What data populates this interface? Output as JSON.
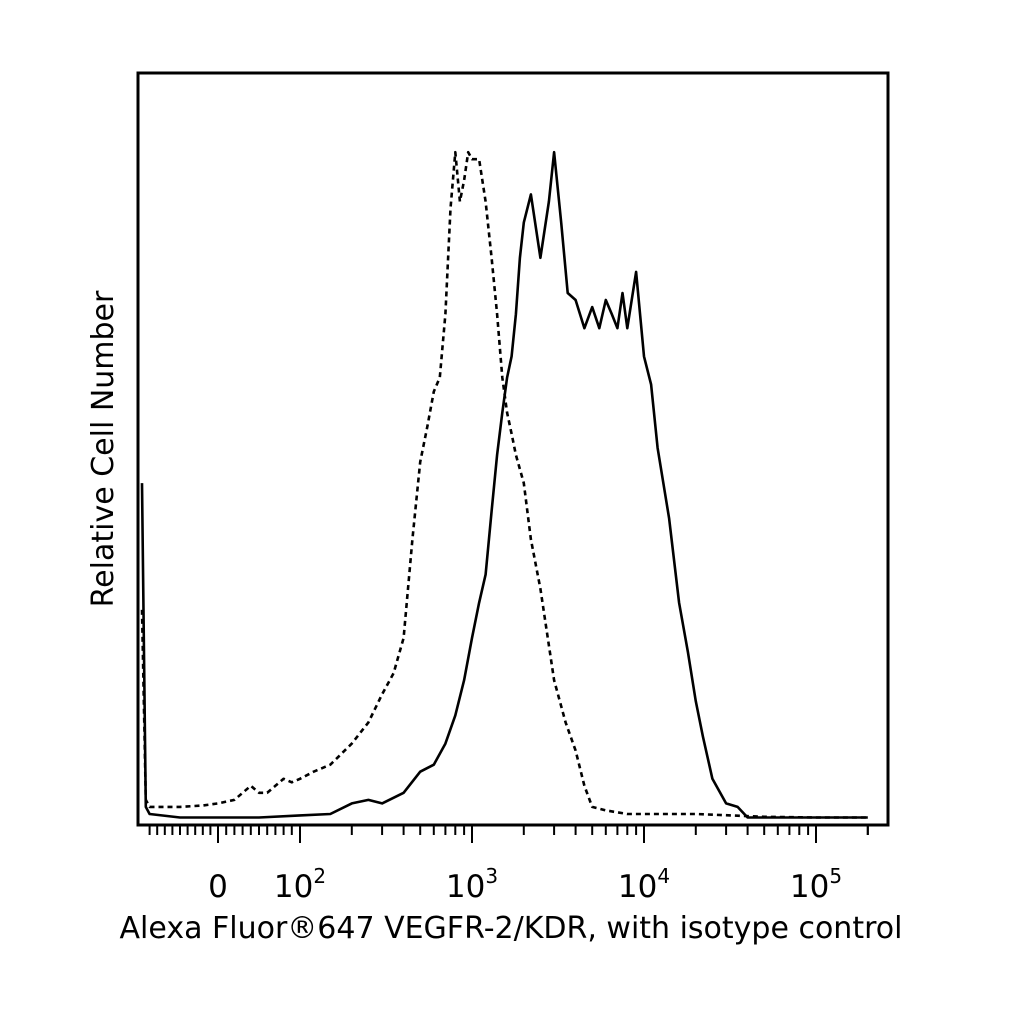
{
  "chart_data": {
    "type": "line",
    "title": "",
    "xlabel": "Alexa Fluor®647 VEGFR-2/KDR, with isotype control",
    "ylabel": "Relative Cell Number",
    "x_scale": "biexponential",
    "xlim": [
      -100,
      200000
    ],
    "ylim": [
      0,
      100
    ],
    "grid": false,
    "legend": "none",
    "x_ticks": [
      {
        "base": "0",
        "exp": "",
        "value": 0
      },
      {
        "base": "10",
        "exp": "2",
        "value": 100
      },
      {
        "base": "10",
        "exp": "3",
        "value": 1000
      },
      {
        "base": "10",
        "exp": "4",
        "value": 10000
      },
      {
        "base": "10",
        "exp": "5",
        "value": 100000
      }
    ],
    "series": [
      {
        "style": "dashed",
        "color": "#000000",
        "points": [
          [
            -100,
            30
          ],
          [
            -95,
            3
          ],
          [
            -90,
            2
          ],
          [
            -80,
            2
          ],
          [
            -50,
            2
          ],
          [
            -20,
            2.2
          ],
          [
            0,
            2.5
          ],
          [
            20,
            3
          ],
          [
            40,
            5
          ],
          [
            50,
            4
          ],
          [
            60,
            4
          ],
          [
            70,
            5
          ],
          [
            80,
            6
          ],
          [
            90,
            5.5
          ],
          [
            100,
            6
          ],
          [
            120,
            7
          ],
          [
            150,
            8
          ],
          [
            200,
            11
          ],
          [
            250,
            14
          ],
          [
            300,
            18
          ],
          [
            350,
            21
          ],
          [
            400,
            26
          ],
          [
            450,
            40
          ],
          [
            500,
            51
          ],
          [
            550,
            56
          ],
          [
            600,
            61
          ],
          [
            650,
            63
          ],
          [
            700,
            72
          ],
          [
            750,
            87
          ],
          [
            800,
            95
          ],
          [
            850,
            88
          ],
          [
            900,
            91
          ],
          [
            950,
            95
          ],
          [
            1000,
            94
          ],
          [
            1100,
            94
          ],
          [
            1200,
            88
          ],
          [
            1300,
            80
          ],
          [
            1400,
            72
          ],
          [
            1500,
            63
          ],
          [
            1600,
            58
          ],
          [
            1700,
            55
          ],
          [
            1800,
            52
          ],
          [
            2000,
            48
          ],
          [
            2200,
            40
          ],
          [
            2500,
            33
          ],
          [
            3000,
            20
          ],
          [
            3500,
            14
          ],
          [
            4000,
            10
          ],
          [
            4500,
            5
          ],
          [
            5000,
            2
          ],
          [
            6000,
            1.5
          ],
          [
            8000,
            1
          ],
          [
            10000,
            1
          ],
          [
            20000,
            1
          ],
          [
            50000,
            0.6
          ],
          [
            100000,
            0.5
          ],
          [
            200000,
            0.5
          ]
        ]
      },
      {
        "style": "solid",
        "color": "#000000",
        "points": [
          [
            -100,
            48
          ],
          [
            -95,
            2
          ],
          [
            -90,
            1
          ],
          [
            -50,
            0.5
          ],
          [
            0,
            0.5
          ],
          [
            50,
            0.5
          ],
          [
            100,
            0.8
          ],
          [
            150,
            1
          ],
          [
            200,
            2.5
          ],
          [
            250,
            3
          ],
          [
            300,
            2.5
          ],
          [
            400,
            4
          ],
          [
            500,
            7
          ],
          [
            600,
            8
          ],
          [
            700,
            11
          ],
          [
            800,
            15
          ],
          [
            900,
            20
          ],
          [
            1000,
            26
          ],
          [
            1100,
            31
          ],
          [
            1200,
            35
          ],
          [
            1300,
            44
          ],
          [
            1400,
            52
          ],
          [
            1500,
            58
          ],
          [
            1600,
            63
          ],
          [
            1700,
            66
          ],
          [
            1800,
            72
          ],
          [
            1900,
            80
          ],
          [
            2000,
            85
          ],
          [
            2200,
            89
          ],
          [
            2500,
            80
          ],
          [
            2800,
            88
          ],
          [
            3000,
            95
          ],
          [
            3300,
            85
          ],
          [
            3600,
            75
          ],
          [
            4000,
            74
          ],
          [
            4500,
            70
          ],
          [
            5000,
            73
          ],
          [
            5500,
            70
          ],
          [
            6000,
            74
          ],
          [
            6500,
            72
          ],
          [
            7000,
            70
          ],
          [
            7500,
            75
          ],
          [
            8000,
            70
          ],
          [
            9000,
            78
          ],
          [
            10000,
            66
          ],
          [
            11000,
            62
          ],
          [
            12000,
            53
          ],
          [
            14000,
            43
          ],
          [
            16000,
            31
          ],
          [
            18000,
            24
          ],
          [
            20000,
            17
          ],
          [
            22000,
            12
          ],
          [
            25000,
            6
          ],
          [
            30000,
            2.5
          ],
          [
            35000,
            2
          ],
          [
            40000,
            0.5
          ],
          [
            50000,
            0.5
          ],
          [
            100000,
            0.5
          ],
          [
            200000,
            0.5
          ]
        ]
      }
    ]
  }
}
